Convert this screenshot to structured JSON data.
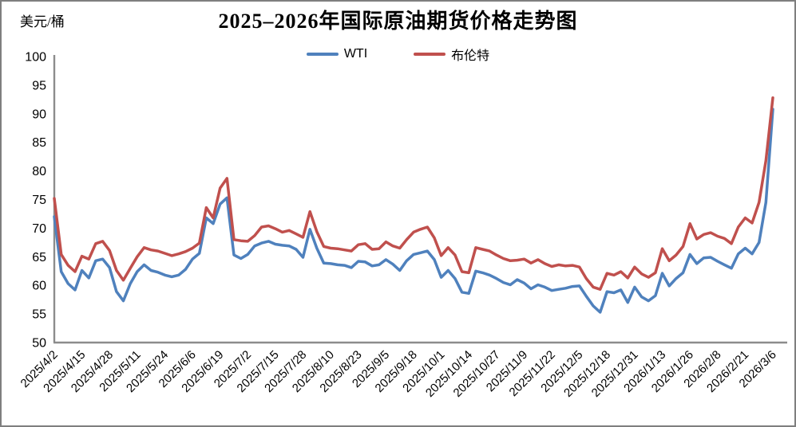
{
  "title": "2025–2026年国际原油期货价格走势图",
  "unit_label": "美元/桶",
  "legend": [
    {
      "label": "WTI",
      "color": "#4F81BD"
    },
    {
      "label": "布伦特",
      "color": "#C0504D"
    }
  ],
  "frame_border_color": "#7f7f7f",
  "axis_color": "#8c8c8c",
  "chart_data": {
    "type": "line",
    "title": "2025–2026年国际原油期货价格走势图",
    "xlabel": "",
    "ylabel": "美元/桶",
    "ylim": [
      50,
      100
    ],
    "y_tick_labels": [
      100,
      95,
      90,
      85,
      80,
      75,
      70,
      65,
      60,
      55,
      50
    ],
    "grid": false,
    "legend_position": "top-center",
    "tick_labels": [
      "2025/4/2",
      "2025/4/15",
      "2025/4/28",
      "2025/5/11",
      "2025/5/24",
      "2025/6/6",
      "2025/6/19",
      "2025/7/2",
      "2025/7/15",
      "2025/7/28",
      "2025/8/10",
      "2025/8/23",
      "2025/9/5",
      "2025/9/18",
      "2025/10/1",
      "2025/10/14",
      "2025/10/27",
      "2025/11/9",
      "2025/11/22",
      "2025/12/5",
      "2025/12/18",
      "2025/12/31",
      "2026/1/13",
      "2026/1/26",
      "2026/2/8",
      "2026/2/21",
      "2026/3/6"
    ],
    "points_per_tick_interval": 4,
    "series": [
      {
        "name": "WTI",
        "color": "#4F81BD",
        "values": [
          72.0,
          62.4,
          60.3,
          59.2,
          62.6,
          61.3,
          64.3,
          64.6,
          63.1,
          58.9,
          57.3,
          60.3,
          62.4,
          63.6,
          62.6,
          62.3,
          61.8,
          61.5,
          61.8,
          62.8,
          64.6,
          65.6,
          71.8,
          70.8,
          74.2,
          75.3,
          65.3,
          64.7,
          65.4,
          66.9,
          67.4,
          67.7,
          67.2,
          67.0,
          66.9,
          66.3,
          64.9,
          69.8,
          66.5,
          63.9,
          63.8,
          63.6,
          63.5,
          63.1,
          64.2,
          64.1,
          63.4,
          63.6,
          64.5,
          63.7,
          62.6,
          64.3,
          65.4,
          65.7,
          66.0,
          64.5,
          61.4,
          62.6,
          61.2,
          58.8,
          58.6,
          62.5,
          62.2,
          61.8,
          61.2,
          60.5,
          60.1,
          61.0,
          60.4,
          59.4,
          60.1,
          59.7,
          59.1,
          59.3,
          59.5,
          59.8,
          59.9,
          58.1,
          56.4,
          55.3,
          58.9,
          58.7,
          59.2,
          57.0,
          59.7,
          58.0,
          57.3,
          58.2,
          62.1,
          59.9,
          61.2,
          62.2,
          65.4,
          63.8,
          64.8,
          64.9,
          64.2,
          63.6,
          63.0,
          65.5,
          66.5,
          65.5,
          67.5,
          74.5,
          90.8
        ]
      },
      {
        "name": "布伦特",
        "color": "#C0504D",
        "values": [
          75.2,
          65.4,
          63.5,
          62.4,
          65.1,
          64.6,
          67.3,
          67.7,
          66.1,
          62.6,
          60.9,
          63.0,
          65.0,
          66.6,
          66.2,
          66.0,
          65.6,
          65.2,
          65.5,
          65.9,
          66.5,
          67.4,
          73.6,
          71.8,
          77.0,
          78.7,
          68.0,
          67.8,
          67.7,
          68.7,
          70.2,
          70.4,
          69.9,
          69.3,
          69.6,
          69.0,
          68.4,
          72.9,
          69.4,
          66.8,
          66.5,
          66.4,
          66.2,
          66.0,
          67.1,
          67.3,
          66.3,
          66.4,
          67.6,
          66.9,
          66.5,
          68.0,
          69.3,
          69.8,
          70.2,
          68.3,
          65.2,
          66.6,
          65.3,
          62.4,
          62.2,
          66.6,
          66.3,
          66.0,
          65.3,
          64.7,
          64.3,
          64.4,
          64.6,
          63.9,
          64.5,
          63.8,
          63.3,
          63.6,
          63.4,
          63.5,
          63.2,
          61.2,
          59.7,
          59.3,
          62.1,
          61.8,
          62.4,
          61.3,
          63.2,
          62.0,
          61.4,
          62.2,
          66.4,
          64.3,
          65.3,
          66.8,
          70.8,
          68.1,
          68.9,
          69.2,
          68.6,
          68.2,
          67.3,
          70.2,
          71.8,
          70.9,
          74.5,
          81.8,
          92.8
        ]
      }
    ]
  }
}
